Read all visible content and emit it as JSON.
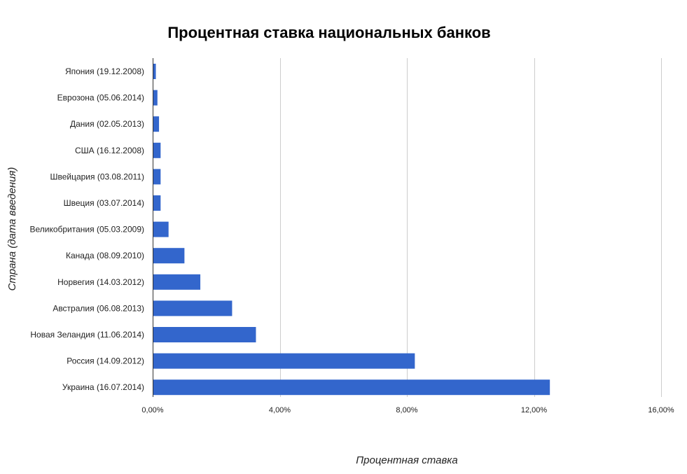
{
  "chart_data": {
    "type": "bar",
    "orientation": "horizontal",
    "title": "Процентная ставка национальных банков",
    "xlabel": "Процентная ставка",
    "ylabel": "Страна (дата введения)",
    "categories": [
      "Япония (19.12.2008)",
      "Еврозона (05.06.2014)",
      "Дания (02.05.2013)",
      "США (16.12.2008)",
      "Швейцария (03.08.2011)",
      "Швеция (03.07.2014)",
      "Великобритания (05.03.2009)",
      "Канада (08.09.2010)",
      "Норвегия (14.03.2012)",
      "Австралия (06.08.2013)",
      "Новая Зеландия (11.06.2014)",
      "Россия (14.09.2012)",
      "Украина (16.07.2014)"
    ],
    "values": [
      0.1,
      0.15,
      0.2,
      0.25,
      0.25,
      0.25,
      0.5,
      1.0,
      1.5,
      2.5,
      3.25,
      8.25,
      12.5
    ],
    "xlim": [
      0,
      16
    ],
    "xticks": [
      0,
      4,
      8,
      12,
      16
    ],
    "xtick_labels": [
      "0,00%",
      "4,00%",
      "8,00%",
      "12,00%",
      "16,00%"
    ],
    "grid": true,
    "colors": {
      "bar": "#3366cc",
      "grid": "#cccccc",
      "axis": "#333333"
    }
  }
}
